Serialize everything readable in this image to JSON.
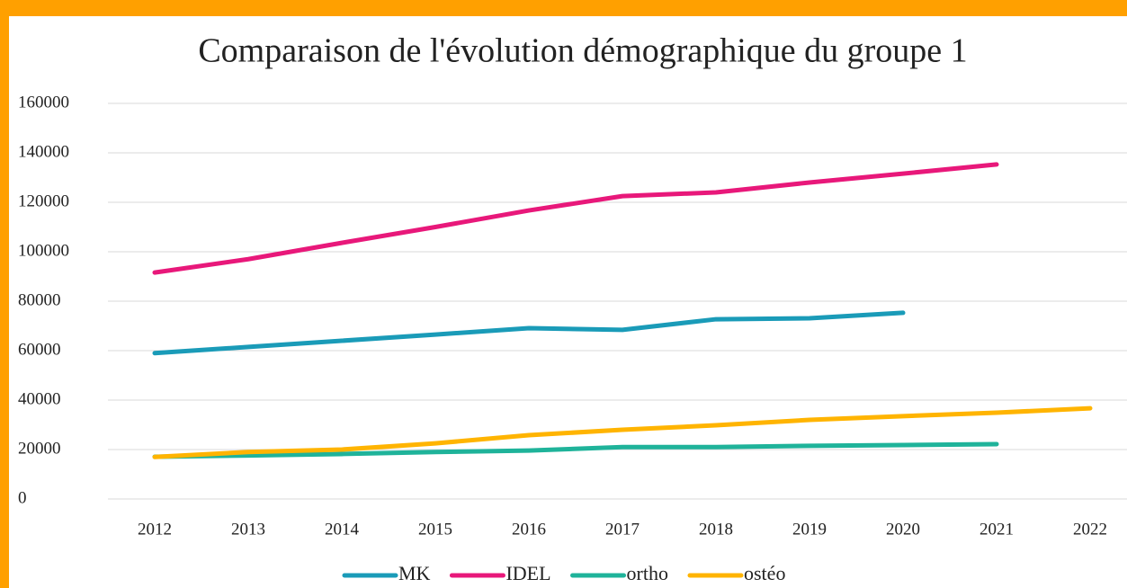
{
  "chart_data": {
    "type": "line",
    "title": "Comparaison de l'évolution démographique du groupe 1",
    "categories": [
      "2012",
      "2013",
      "2014",
      "2015",
      "2016",
      "2017",
      "2018",
      "2019",
      "2020",
      "2021",
      "2022"
    ],
    "series": [
      {
        "name": "MK",
        "color": "#1a9bb8",
        "values": [
          59000,
          61500,
          64000,
          66500,
          69100,
          68400,
          72700,
          73100,
          75300,
          null,
          null
        ]
      },
      {
        "name": "IDEL",
        "color": "#e8187a",
        "values": [
          91600,
          97000,
          103600,
          110000,
          116700,
          122500,
          124000,
          128000,
          131600,
          135300,
          null
        ]
      },
      {
        "name": "ortho",
        "color": "#1fb39a",
        "values": [
          17100,
          17600,
          18200,
          19000,
          19600,
          21000,
          21000,
          21500,
          21800,
          22200,
          null
        ]
      },
      {
        "name": "ostéo",
        "color": "#ffb400",
        "values": [
          17000,
          19000,
          20000,
          22500,
          25800,
          28000,
          29800,
          32000,
          33500,
          34900,
          36700
        ]
      }
    ],
    "ylim": [
      0,
      160000
    ],
    "yticks": [
      0,
      20000,
      40000,
      60000,
      80000,
      100000,
      120000,
      140000,
      160000
    ],
    "grid": true,
    "legend": "bottom"
  }
}
